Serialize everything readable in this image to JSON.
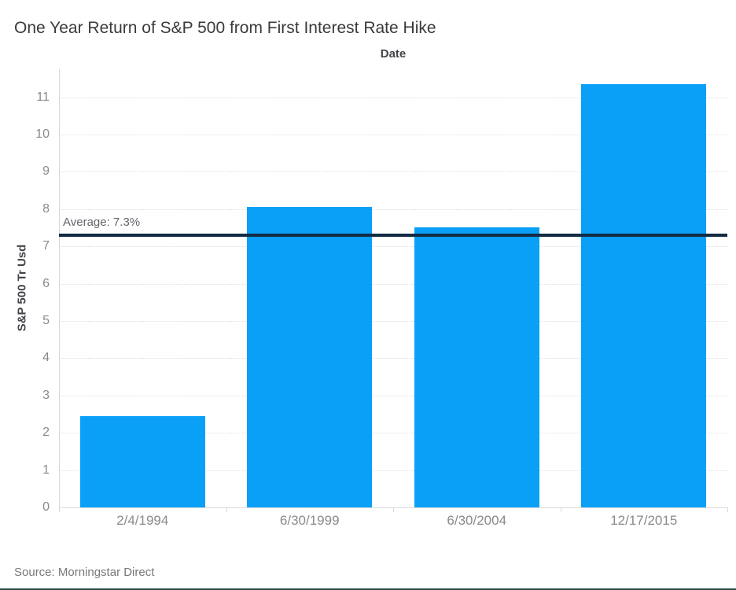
{
  "title": "One Year Return of S&P 500 from First Interest Rate Hike",
  "source_note": "Source: Morningstar Direct",
  "chart_data": {
    "type": "bar",
    "title": "One Year Return of S&P 500 from First Interest Rate Hike",
    "xlabel": "Date",
    "ylabel": "S&P 500 Tr Usd",
    "categories": [
      "2/4/1994",
      "6/30/1999",
      "6/30/2004",
      "12/17/2015"
    ],
    "values": [
      2.45,
      8.05,
      7.5,
      11.35
    ],
    "yticks": [
      0,
      1,
      2,
      3,
      4,
      5,
      6,
      7,
      8,
      9,
      10,
      11
    ],
    "ylim": [
      0,
      11.75
    ],
    "grid": "horizontal-dotted",
    "legend": "none",
    "reference_line": {
      "value": 7.3,
      "label": "Average: 7.3%"
    }
  },
  "colors": {
    "bar": "#0aa0f7",
    "reference_line": "#132b43",
    "gridline": "#dedede",
    "axis_line": "#d9d9d9",
    "tick_label": "#8a8a8a",
    "title_text": "#3a3a3a",
    "axis_title_text": "#42444a",
    "avg_label_text": "#62656b",
    "source_text": "#787878",
    "bottom_border": "#2d4944"
  }
}
